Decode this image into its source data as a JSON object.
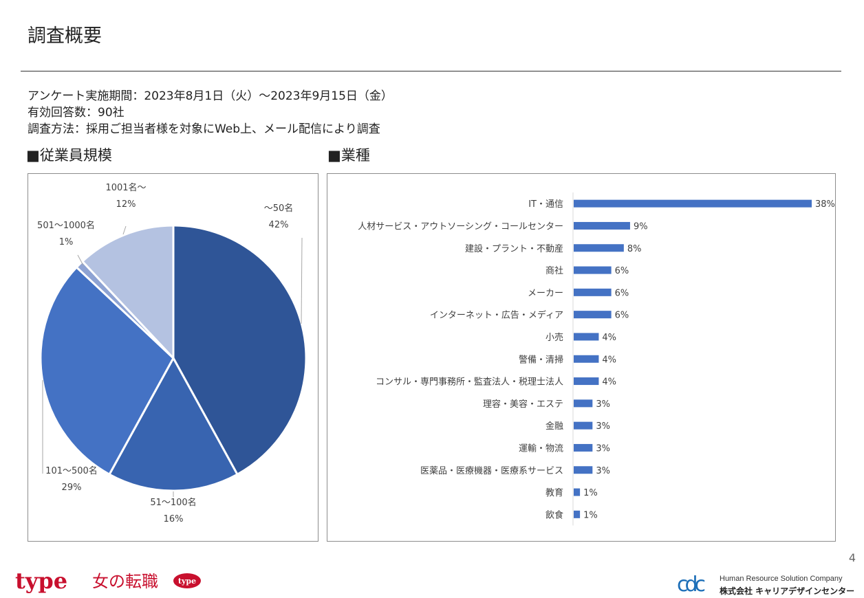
{
  "page": {
    "title": "調査概要",
    "page_number": "4"
  },
  "summary": {
    "period": "アンケート実施期間：2023年8月1日（火）～2023年9月15日（金）",
    "responses": "有効回答数：90社",
    "method": "調査方法：採用ご担当者様を対象にWeb上、メール配信により調査"
  },
  "sections": {
    "size_heading": "■従業員規模",
    "industry_heading": "■業種"
  },
  "chart_data": [
    {
      "type": "pie",
      "title": "",
      "categories": [
        "～50名",
        "51～100名",
        "101～500名",
        "501～1000名",
        "1001名～"
      ],
      "values": [
        42,
        16,
        29,
        1,
        12
      ],
      "value_labels": [
        "42%",
        "16%",
        "29%",
        "1%",
        "12%"
      ],
      "colors": [
        "#2f5597",
        "#3864b0",
        "#4472c4",
        "#8ea3d3",
        "#b4c2e1"
      ]
    },
    {
      "type": "bar",
      "orientation": "horizontal",
      "title": "",
      "categories": [
        "IT・通信",
        "人材サービス・アウトソーシング・コールセンター",
        "建設・プラント・不動産",
        "商社",
        "メーカー",
        "インターネット・広告・メディア",
        "小売",
        "警備・清掃",
        "コンサル・専門事務所・監査法人・税理士法人",
        "理容・美容・エステ",
        "金融",
        "運輸・物流",
        "医薬品・医療機器・医療系サービス",
        "教育",
        "飲食"
      ],
      "values": [
        38,
        9,
        8,
        6,
        6,
        6,
        4,
        4,
        4,
        3,
        3,
        3,
        3,
        1,
        1
      ],
      "value_labels": [
        "38%",
        "9%",
        "8%",
        "6%",
        "6%",
        "6%",
        "4%",
        "4%",
        "4%",
        "3%",
        "3%",
        "3%",
        "3%",
        "1%",
        "1%"
      ],
      "color": "#4472c4"
    }
  ],
  "footer": {
    "brand_type": "type",
    "brand_women": "女の転職",
    "brand_badge": "type",
    "logo_mark": "cdc",
    "company_en": "Human Resource Solution Company",
    "company_ja": "株式会社 キャリアデザインセンター",
    "brand_color": "#c8102e"
  }
}
